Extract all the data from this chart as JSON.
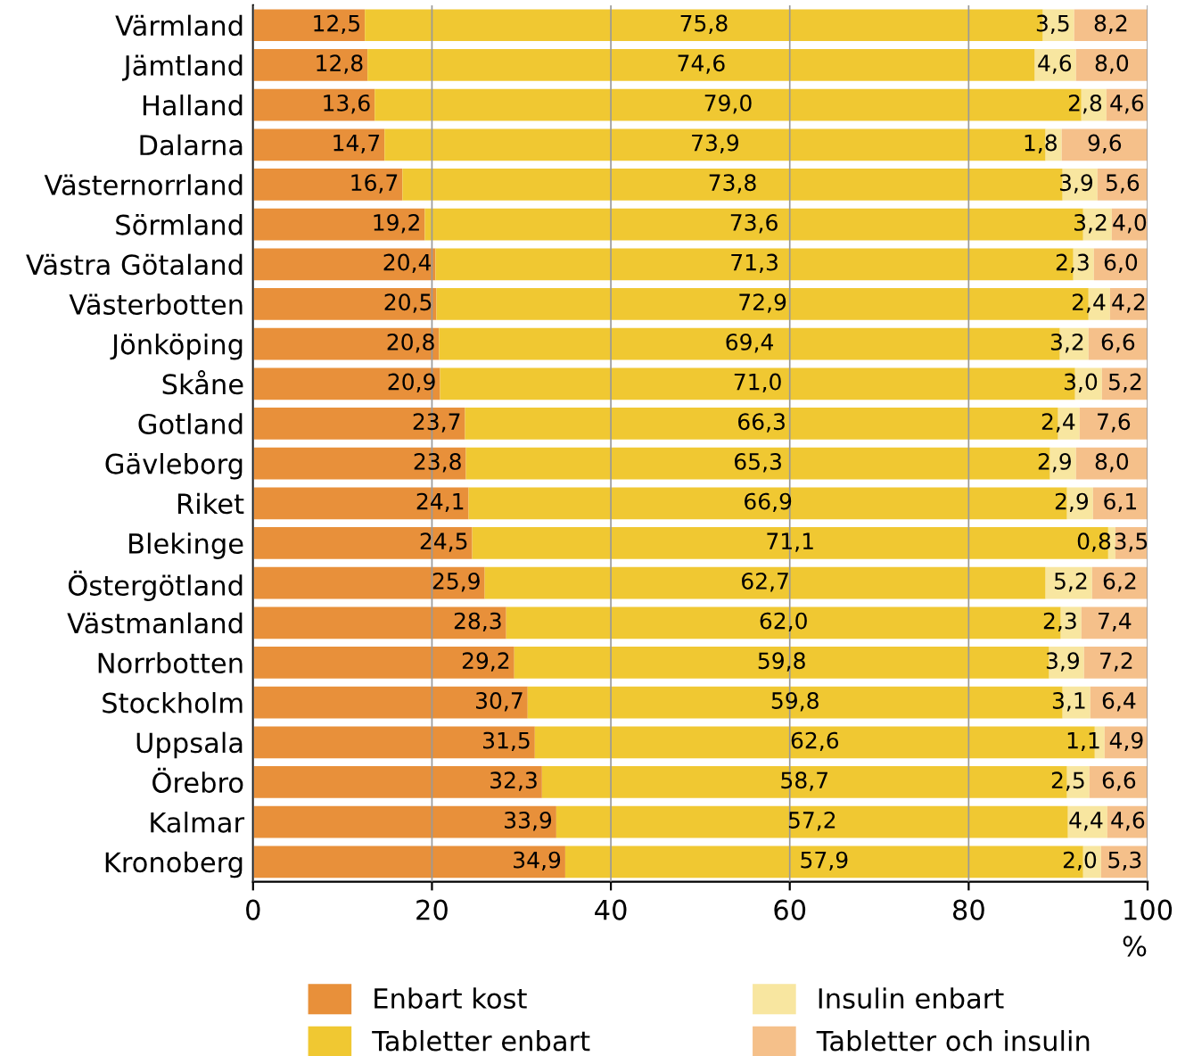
{
  "chart_data": {
    "type": "bar",
    "orientation": "horizontal",
    "stacked": true,
    "categories": [
      "Värmland",
      "Jämtland",
      "Halland",
      "Dalarna",
      "Västernorrland",
      "Sörmland",
      "Västra Götaland",
      "Västerbotten",
      "Jönköping",
      "Skåne",
      "Gotland",
      "Gävleborg",
      "Riket",
      "Blekinge",
      "Östergötland",
      "Västmanland",
      "Norrbotten",
      "Stockholm",
      "Uppsala",
      "Örebro",
      "Kalmar",
      "Kronoberg"
    ],
    "series": [
      {
        "name": "Enbart kost",
        "color": "#e8903a",
        "values": [
          12.5,
          12.8,
          13.6,
          14.7,
          16.7,
          19.2,
          20.4,
          20.5,
          20.8,
          20.9,
          23.7,
          23.8,
          24.1,
          24.5,
          25.9,
          28.3,
          29.2,
          30.7,
          31.5,
          32.3,
          33.9,
          34.9
        ],
        "value_labels": [
          "12,5",
          "12,8",
          "13,6",
          "14,7",
          "16,7",
          "19,2",
          "20,4",
          "20,5",
          "20,8",
          "20,9",
          "23,7",
          "23,8",
          "24,1",
          "24,5",
          "25,9",
          "28,3",
          "29,2",
          "30,7",
          "31,5",
          "32,3",
          "33,9",
          "34,9"
        ]
      },
      {
        "name": "Tabletter enbart",
        "color": "#f0c832",
        "values": [
          75.8,
          74.6,
          79.0,
          73.9,
          73.8,
          73.6,
          71.3,
          72.9,
          69.4,
          71.0,
          66.3,
          65.3,
          66.9,
          71.1,
          62.7,
          62.0,
          59.8,
          59.8,
          62.6,
          58.7,
          57.2,
          57.9
        ],
        "value_labels": [
          "75,8",
          "74,6",
          "79,0",
          "73,9",
          "73,8",
          "73,6",
          "71,3",
          "72,9",
          "69,4",
          "71,0",
          "66,3",
          "65,3",
          "66,9",
          "71,1",
          "62,7",
          "62,0",
          "59,8",
          "59,8",
          "62,6",
          "58,7",
          "57,2",
          "57,9"
        ]
      },
      {
        "name": "Insulin enbart",
        "color": "#f8e6a0",
        "values": [
          3.5,
          4.6,
          2.8,
          1.8,
          3.9,
          3.2,
          2.3,
          2.4,
          3.2,
          3.0,
          2.4,
          2.9,
          2.9,
          0.8,
          5.2,
          2.3,
          3.9,
          3.1,
          1.1,
          2.5,
          4.4,
          2.0
        ],
        "value_labels": [
          "3,5",
          "4,6",
          "2,8",
          "1,8",
          "3,9",
          "3,2",
          "2,3",
          "2,4",
          "3,2",
          "3,0",
          "2,4",
          "2,9",
          "2,9",
          "0,8",
          "5,2",
          "2,3",
          "3,9",
          "3,1",
          "1,1",
          "2,5",
          "4,4",
          "2,0"
        ]
      },
      {
        "name": "Tabletter och insulin",
        "color": "#f5c08a",
        "values": [
          8.2,
          8.0,
          4.6,
          9.6,
          5.6,
          4.0,
          6.0,
          4.2,
          6.6,
          5.2,
          7.6,
          8.0,
          6.1,
          3.5,
          6.2,
          7.4,
          7.2,
          6.4,
          4.9,
          6.6,
          4.6,
          5.3
        ],
        "value_labels": [
          "8,2",
          "8,0",
          "4,6",
          "9,6",
          "5,6",
          "4,0",
          "6,0",
          "4,2",
          "6,6",
          "5,2",
          "7,6",
          "8,0",
          "6,1",
          "3,5",
          "6,2",
          "7,4",
          "7,2",
          "6,4",
          "4,9",
          "6,6",
          "4,6",
          "5,3"
        ]
      }
    ],
    "xlim": [
      0,
      100
    ],
    "xticks": [
      0,
      20,
      40,
      60,
      80,
      100
    ],
    "xlabel": "%",
    "grid": "x",
    "legend": "bottom"
  }
}
